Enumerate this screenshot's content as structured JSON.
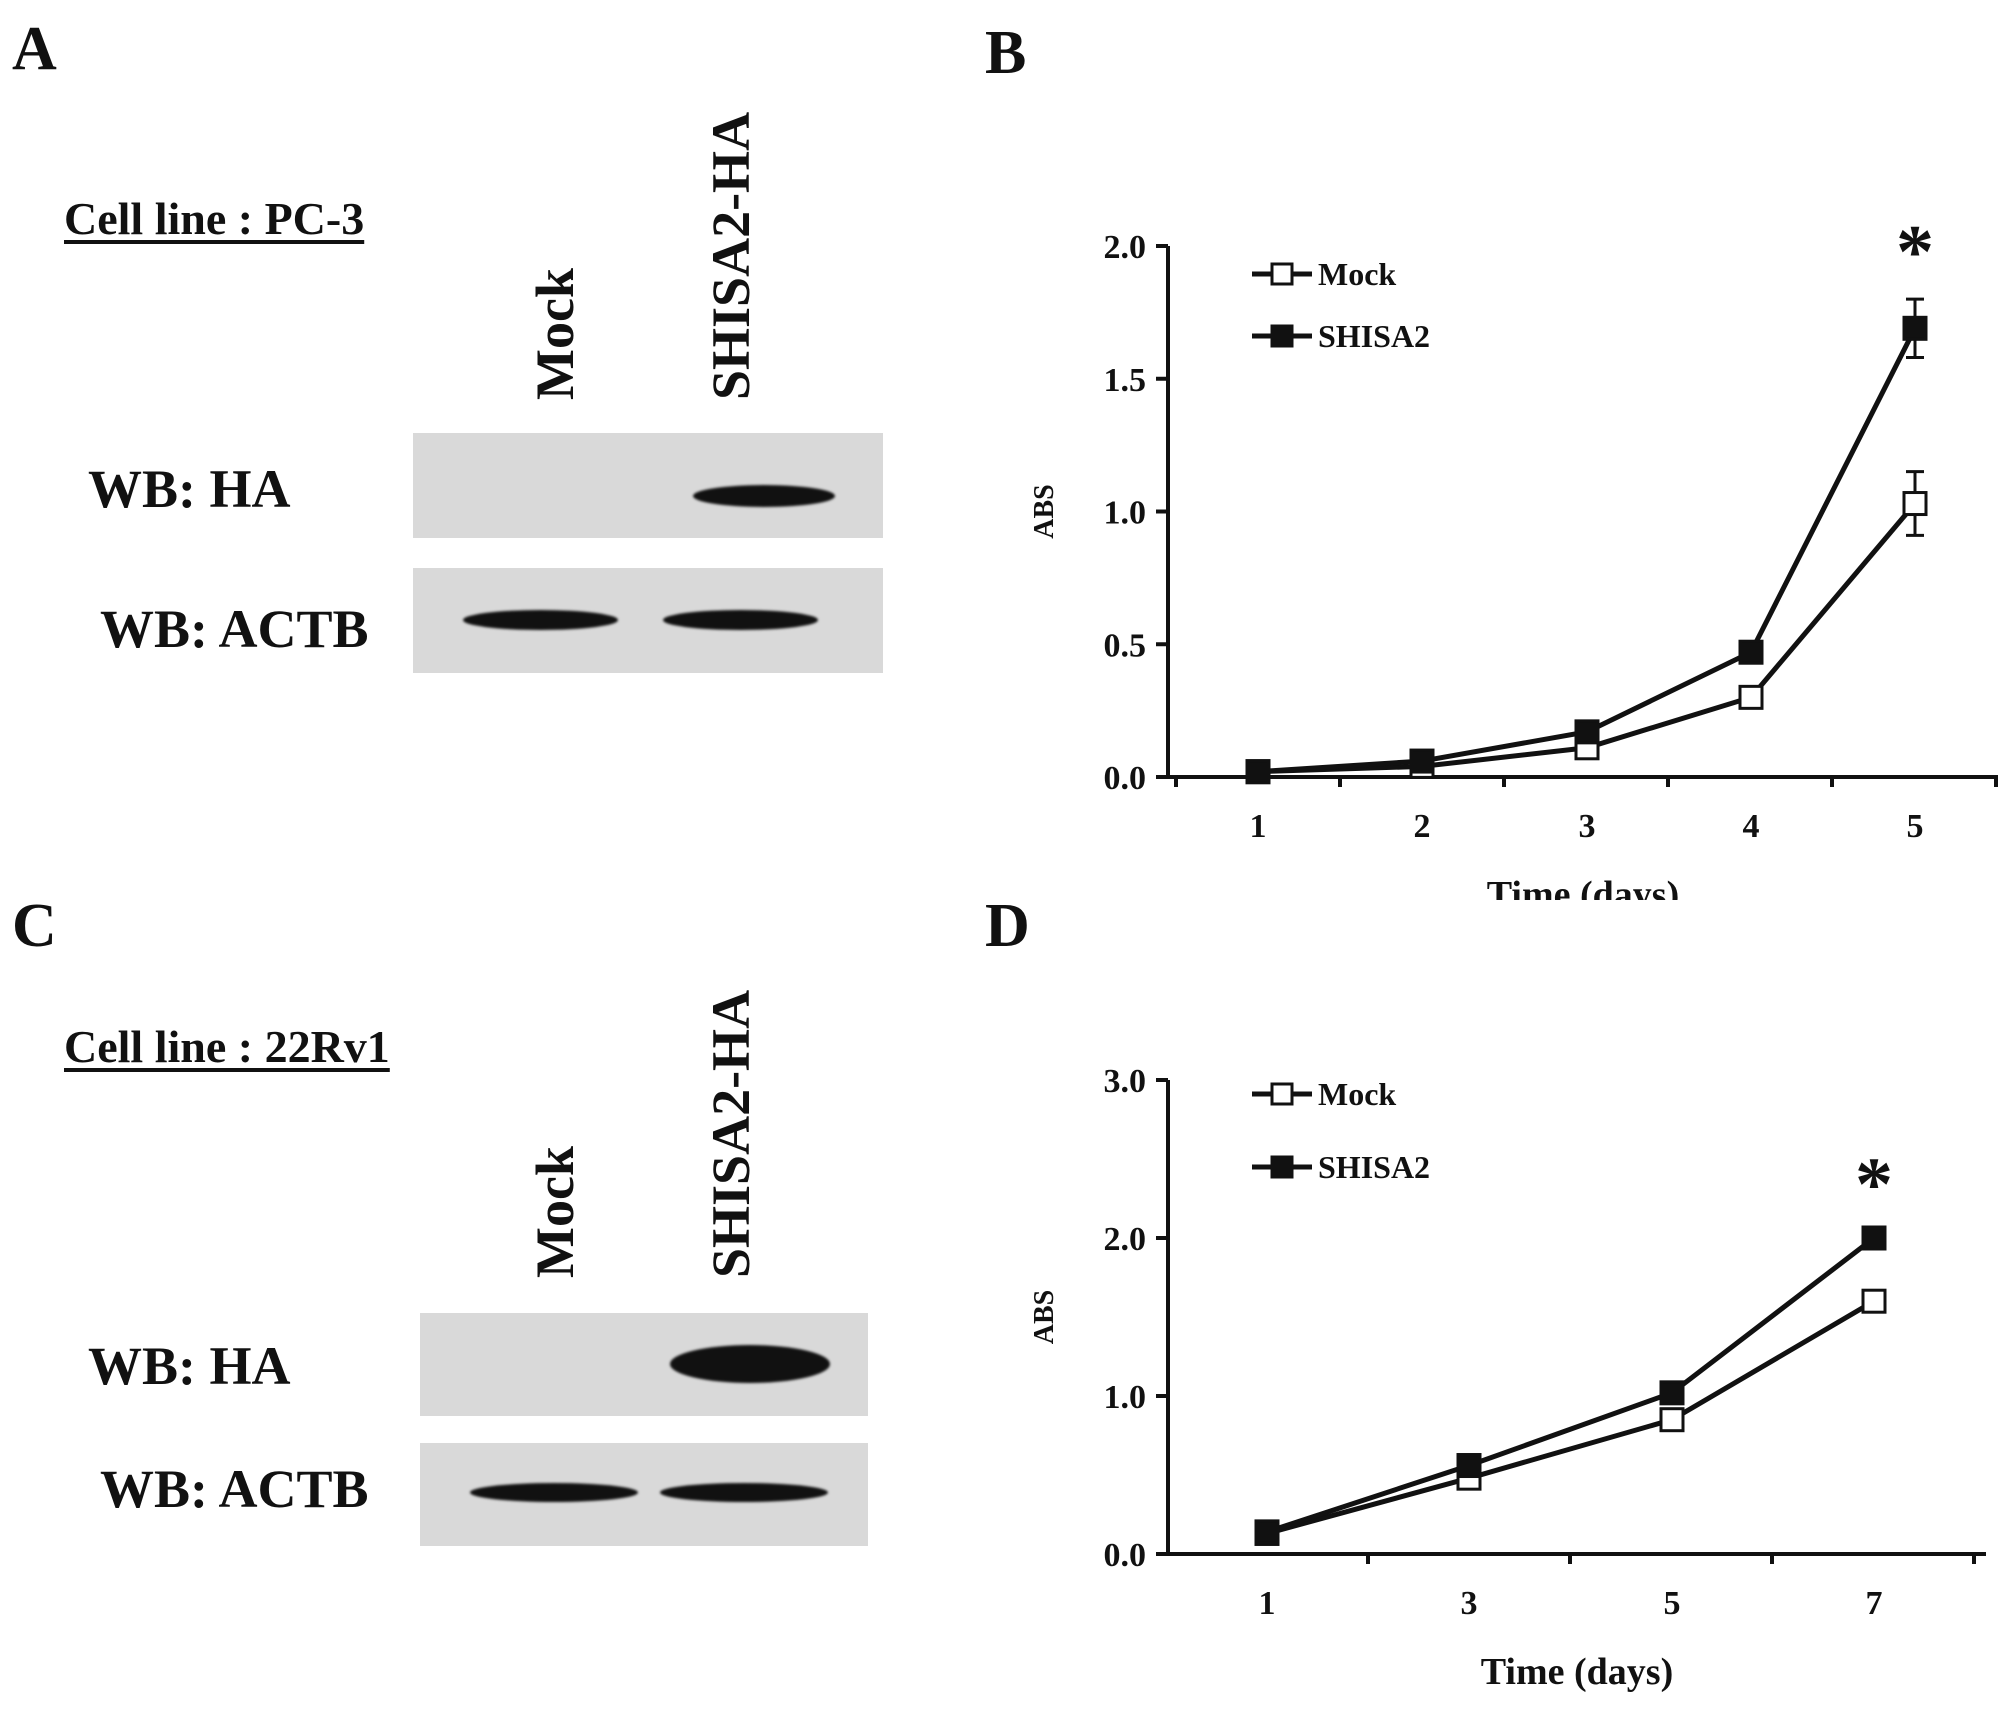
{
  "figure": {
    "panels": [
      {
        "letter": "A",
        "cell_line_label": "Cell line : PC-3",
        "lanes": [
          "Mock",
          "SHISA2-HA"
        ],
        "blots": [
          {
            "label": "WB: HA",
            "bands": [
              "none",
              "strong"
            ]
          },
          {
            "label": "WB: ACTB",
            "bands": [
              "strong",
              "strong"
            ]
          }
        ]
      },
      {
        "letter": "C",
        "cell_line_label": "Cell line : 22Rv1",
        "lanes": [
          "Mock",
          "SHISA2-HA"
        ],
        "blots": [
          {
            "label": "WB: HA",
            "bands": [
              "none",
              "very-strong"
            ]
          },
          {
            "label": "WB: ACTB",
            "bands": [
              "strong",
              "strong"
            ]
          }
        ]
      }
    ]
  },
  "chart_data": [
    {
      "panel": "B",
      "type": "line",
      "xlabel": "Time (days)",
      "ylabel": "ABS",
      "categories": [
        "1",
        "2",
        "3",
        "4",
        "5"
      ],
      "ylim": [
        0,
        2.0
      ],
      "yticks": [
        "0.0",
        "0.5",
        "1.0",
        "1.5",
        "2.0"
      ],
      "legend_position": "top-left",
      "grid": false,
      "series": [
        {
          "name": "Mock",
          "marker": "open-square",
          "values": [
            0.02,
            0.04,
            0.11,
            0.3,
            1.03
          ],
          "errors": [
            0.01,
            0.01,
            0.02,
            0.03,
            0.12
          ]
        },
        {
          "name": "SHISA2",
          "marker": "filled-square",
          "values": [
            0.02,
            0.06,
            0.17,
            0.47,
            1.69
          ],
          "errors": [
            0.01,
            0.01,
            0.02,
            0.04,
            0.11
          ]
        }
      ],
      "annotations": [
        {
          "text": "*",
          "category": "5"
        }
      ]
    },
    {
      "panel": "D",
      "type": "line",
      "xlabel": "Time (days)",
      "ylabel": "ABS",
      "categories": [
        "1",
        "3",
        "5",
        "7"
      ],
      "ylim": [
        0,
        3.0
      ],
      "yticks": [
        "0.0",
        "1.0",
        "2.0",
        "3.0"
      ],
      "legend_position": "top-left",
      "grid": false,
      "series": [
        {
          "name": "Mock",
          "marker": "open-square",
          "values": [
            0.13,
            0.48,
            0.85,
            1.6
          ],
          "errors": [
            0.02,
            0.03,
            0.04,
            0.04
          ]
        },
        {
          "name": "SHISA2",
          "marker": "filled-square",
          "values": [
            0.14,
            0.56,
            1.02,
            2.0
          ],
          "errors": [
            0.02,
            0.03,
            0.04,
            0.04
          ]
        }
      ],
      "annotations": [
        {
          "text": "*",
          "category": "7"
        }
      ]
    }
  ]
}
